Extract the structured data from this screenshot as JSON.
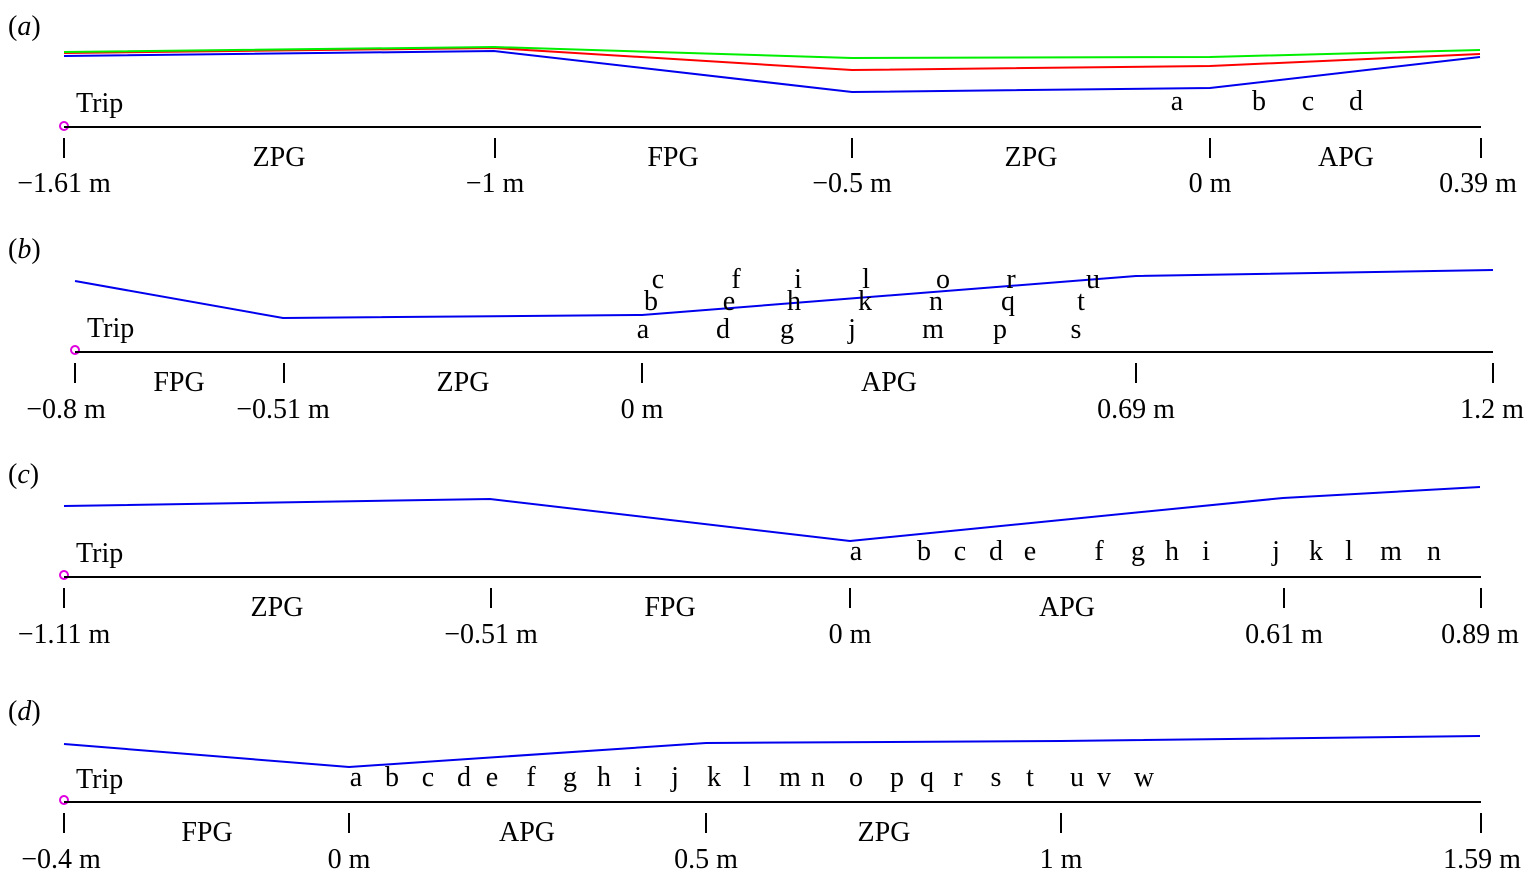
{
  "panels": [
    {
      "label": "a",
      "trip": "Trip",
      "stations": [
        "a",
        "b",
        "c",
        "d"
      ],
      "regions": [
        "ZPG",
        "FPG",
        "ZPG",
        "APG"
      ],
      "ticks": [
        "−1.61 m",
        "−1 m",
        "−0.5 m",
        "0 m",
        "0.39 m"
      ],
      "profile_colors": [
        "#ff0000",
        "#00ee00",
        "#0000ee"
      ]
    },
    {
      "label": "b",
      "trip": "Trip",
      "stations_bottom": [
        "a",
        "d",
        "g",
        "j",
        "m",
        "p",
        "s"
      ],
      "stations_middle": [
        "b",
        "e",
        "h",
        "k",
        "n",
        "q",
        "t"
      ],
      "stations_top": [
        "c",
        "f",
        "i",
        "l",
        "o",
        "r",
        "u"
      ],
      "regions": [
        "FPG",
        "ZPG",
        "APG"
      ],
      "ticks": [
        "−0.8 m",
        "−0.51 m",
        "0 m",
        "0.69 m",
        "1.2 m"
      ]
    },
    {
      "label": "c",
      "trip": "Trip",
      "stations": [
        "a",
        "b",
        "c",
        "d",
        "e",
        "f",
        "g",
        "h",
        "i",
        "j",
        "k",
        "l",
        "m",
        "n"
      ],
      "regions": [
        "ZPG",
        "FPG",
        "APG"
      ],
      "ticks": [
        "−1.11 m",
        "−0.51 m",
        "0 m",
        "0.61 m",
        "0.89 m"
      ]
    },
    {
      "label": "d",
      "trip": "Trip",
      "stations": [
        "a",
        "b",
        "c",
        "d",
        "e",
        "f",
        "g",
        "h",
        "i",
        "j",
        "k",
        "l",
        "m",
        "n",
        "o",
        "p",
        "q",
        "r",
        "s",
        "t",
        "u",
        "v",
        "w"
      ],
      "regions": [
        "FPG",
        "APG",
        "ZPG"
      ],
      "ticks": [
        "−0.4 m",
        "0 m",
        "0.5 m",
        "1 m",
        "1.59 m"
      ]
    }
  ],
  "colors": {
    "axis": "#000000",
    "profile": "#0000ee",
    "trip_marker": "#e000e0"
  }
}
